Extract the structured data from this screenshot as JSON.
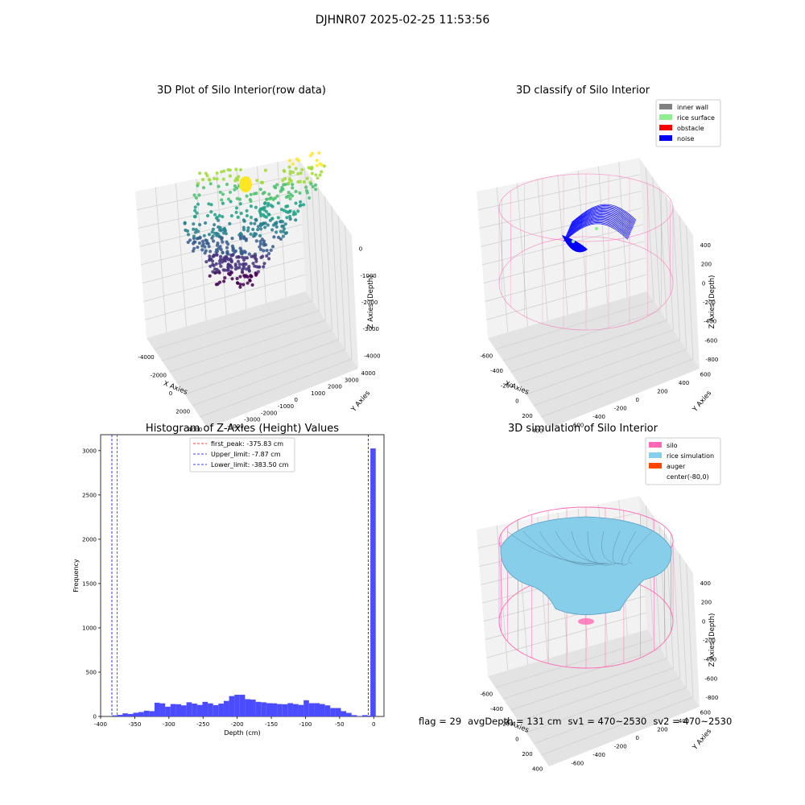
{
  "suptitle": "DJHNR07 2025-02-25 11:53:56",
  "footer": {
    "flag": "flag = 29",
    "avg_depth": "avgDepth = 131 cm",
    "sv1": "sv1 = 470~2530",
    "sv2": "sv2 = 470~2530"
  },
  "colors": {
    "inner_wall": "#808080",
    "rice_surface": "#90ee90",
    "obstacle": "#ff0000",
    "noise": "#0000ff",
    "silo": "#ff69b4",
    "rice_simulation": "#87ceeb",
    "auger": "#ff4500",
    "hist_bar": "#4b4bff"
  },
  "chart_data": [
    {
      "type": "scatter",
      "panel": "top-left",
      "title": "3D Plot of Silo Interior(row data)",
      "xlabel": "X Axies",
      "ylabel": "Y Axies",
      "zlabel": "Z Axies (Depth)",
      "x_ticks": [
        "-4000",
        "-2000",
        "0",
        "2000",
        "4000"
      ],
      "y_ticks": [
        "-4000",
        "-3000",
        "-2000",
        "-1000",
        "0",
        "1000",
        "2000",
        "3000",
        "4000"
      ],
      "z_ticks": [
        "-4000",
        "-3000",
        "-2000",
        "-1000",
        "0"
      ],
      "xlim": [
        -4500,
        4500
      ],
      "ylim": [
        -4500,
        4500
      ],
      "zlim": [
        -4500,
        300
      ],
      "colormap": "viridis"
    },
    {
      "type": "scatter",
      "panel": "top-right",
      "title": "3D classify of Silo Interior",
      "xlabel": "X Axies",
      "ylabel": "Y Axies",
      "zlabel": "Z Axies (Depth)",
      "x_ticks": [
        "-600",
        "-400",
        "-200",
        "0",
        "200",
        "400"
      ],
      "y_ticks": [
        "-600",
        "-400",
        "-200",
        "0",
        "200",
        "400",
        "600"
      ],
      "z_ticks": [
        "-800",
        "-600",
        "-400",
        "-200",
        "0",
        "200",
        "400"
      ],
      "legend_placement": "top-right",
      "legend": [
        {
          "label": "inner wall",
          "color_key": "inner_wall"
        },
        {
          "label": "rice surface",
          "color_key": "rice_surface"
        },
        {
          "label": "obstacle",
          "color_key": "obstacle"
        },
        {
          "label": "noise",
          "color_key": "noise"
        }
      ]
    },
    {
      "type": "bar",
      "panel": "bottom-left",
      "title": "Histogram of Z-Axies (Height) Values",
      "xlabel": "Depth (cm)",
      "ylabel": "Frequency",
      "xlim": [
        -400,
        15
      ],
      "ylim": [
        0,
        3180
      ],
      "x_ticks": [
        -400,
        -350,
        -300,
        -250,
        -200,
        -150,
        -100,
        -50,
        0
      ],
      "y_ticks": [
        0,
        500,
        1000,
        1500,
        2000,
        2500,
        3000
      ],
      "bin_width": 7.8,
      "bin_centers": [
        -379.6,
        -371.8,
        -364.0,
        -356.2,
        -348.4,
        -340.6,
        -332.8,
        -325.0,
        -317.2,
        -309.4,
        -301.6,
        -293.8,
        -286.0,
        -278.2,
        -270.4,
        -262.6,
        -254.8,
        -247.0,
        -239.2,
        -231.4,
        -223.6,
        -215.8,
        -208.0,
        -200.2,
        -192.4,
        -184.6,
        -176.8,
        -169.0,
        -161.2,
        -153.4,
        -145.6,
        -137.8,
        -130.0,
        -122.2,
        -114.4,
        -106.6,
        -98.8,
        -91.0,
        -83.2,
        -75.4,
        -67.6,
        -59.8,
        -52.0,
        -44.2,
        -36.4,
        -28.6,
        -20.8,
        -13.0,
        -5.2,
        -1.0
      ],
      "values": [
        12,
        18,
        35,
        28,
        42,
        50,
        65,
        60,
        155,
        148,
        110,
        140,
        138,
        125,
        160,
        145,
        130,
        165,
        148,
        128,
        145,
        175,
        230,
        245,
        245,
        195,
        190,
        165,
        160,
        150,
        148,
        140,
        138,
        150,
        140,
        130,
        183,
        150,
        150,
        140,
        125,
        95,
        95,
        60,
        40,
        15,
        5,
        15,
        10,
        3025
      ],
      "series": [
        {
          "name": "first_peak: -375.83 cm",
          "x": -375.83,
          "style": "dashed",
          "color": "#ff0000"
        },
        {
          "name": "Upper_limit: -7.87 cm",
          "x": -7.87,
          "style": "dashed",
          "color": "#0000ff"
        },
        {
          "name": "Lower_limit: -383.50 cm",
          "x": -383.5,
          "style": "dashed",
          "color": "#0000ff"
        }
      ],
      "legend_placement": "top-center"
    },
    {
      "type": "area",
      "panel": "bottom-right",
      "title": "3D simulation of Silo Interior",
      "xlabel": "X Axies",
      "ylabel": "Y Axies",
      "zlabel": "Z Axies (Depth)",
      "x_ticks": [
        "-600",
        "-400",
        "-200",
        "0",
        "200",
        "400"
      ],
      "y_ticks": [
        "-600",
        "-400",
        "-200",
        "0",
        "200",
        "400",
        "600"
      ],
      "z_ticks": [
        "-800",
        "-600",
        "-400",
        "-200",
        "0",
        "200",
        "400"
      ],
      "legend_placement": "top-right",
      "legend": [
        {
          "label": "silo",
          "color_key": "silo"
        },
        {
          "label": "rice simulation",
          "color_key": "rice_simulation"
        },
        {
          "label": "auger",
          "color_key": "auger"
        },
        {
          "label": "center(-80,0)",
          "color_key": ""
        }
      ]
    }
  ]
}
